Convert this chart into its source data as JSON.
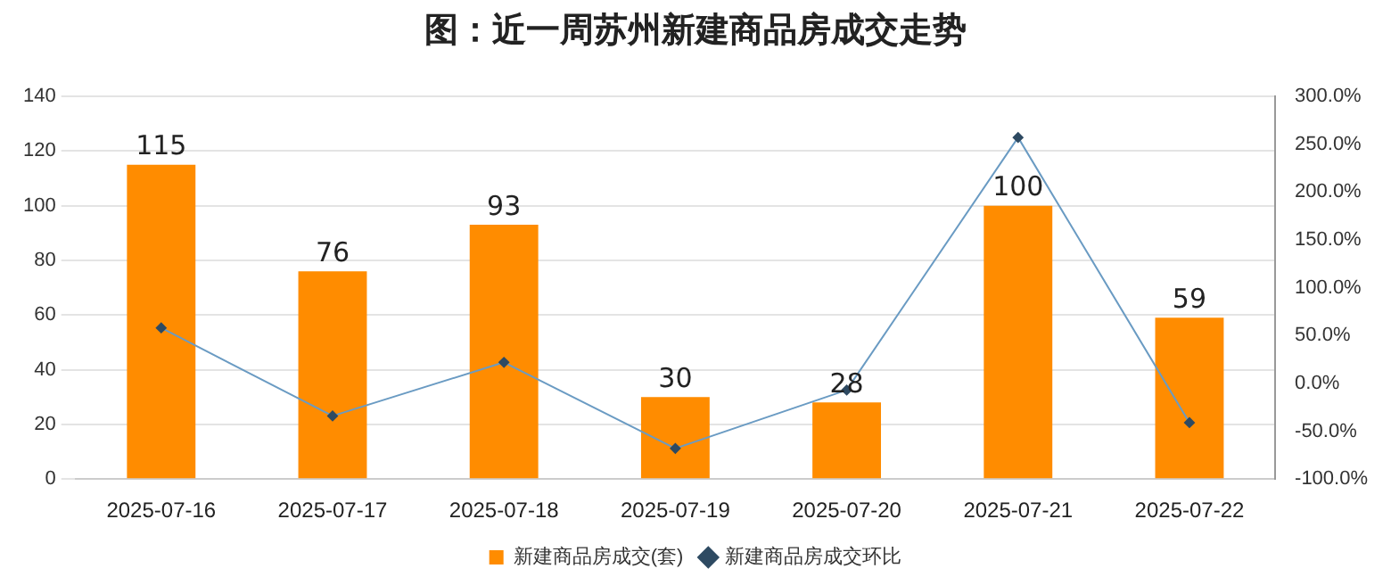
{
  "chart_data": {
    "type": "bar",
    "title": "图：近一周苏州新建商品房成交走势",
    "categories": [
      "2025-07-16",
      "2025-07-17",
      "2025-07-18",
      "2025-07-19",
      "2025-07-20",
      "2025-07-21",
      "2025-07-22"
    ],
    "series": [
      {
        "name": "新建商品房成交(套)",
        "color": "#ff8c00",
        "values": [
          115,
          76,
          93,
          30,
          28,
          100,
          59
        ],
        "data_labels": true
      },
      {
        "name": "新建商品房成交环比",
        "type": "line",
        "axis": "y2",
        "color": "#6a9bc3",
        "marker": "diamond",
        "values": [
          58,
          -34,
          22,
          -68,
          -7,
          257,
          -41
        ]
      }
    ],
    "ylim": [
      0,
      140
    ],
    "yticks": [
      0,
      20,
      40,
      60,
      80,
      100,
      120,
      140
    ],
    "y2lim": [
      -100,
      300
    ],
    "y2ticks": [
      {
        "value": -100,
        "label": "-100.0%"
      },
      {
        "value": -50,
        "label": "-50.0%"
      },
      {
        "value": 0,
        "label": "0.0%"
      },
      {
        "value": 50,
        "label": "50.0%"
      },
      {
        "value": 100,
        "label": "100.0%"
      },
      {
        "value": 150,
        "label": "150.0%"
      },
      {
        "value": 200,
        "label": "200.0%"
      },
      {
        "value": 250,
        "label": "250.0%"
      },
      {
        "value": 300,
        "label": "300.0%"
      }
    ],
    "grid": "y",
    "legend": "bottom"
  }
}
